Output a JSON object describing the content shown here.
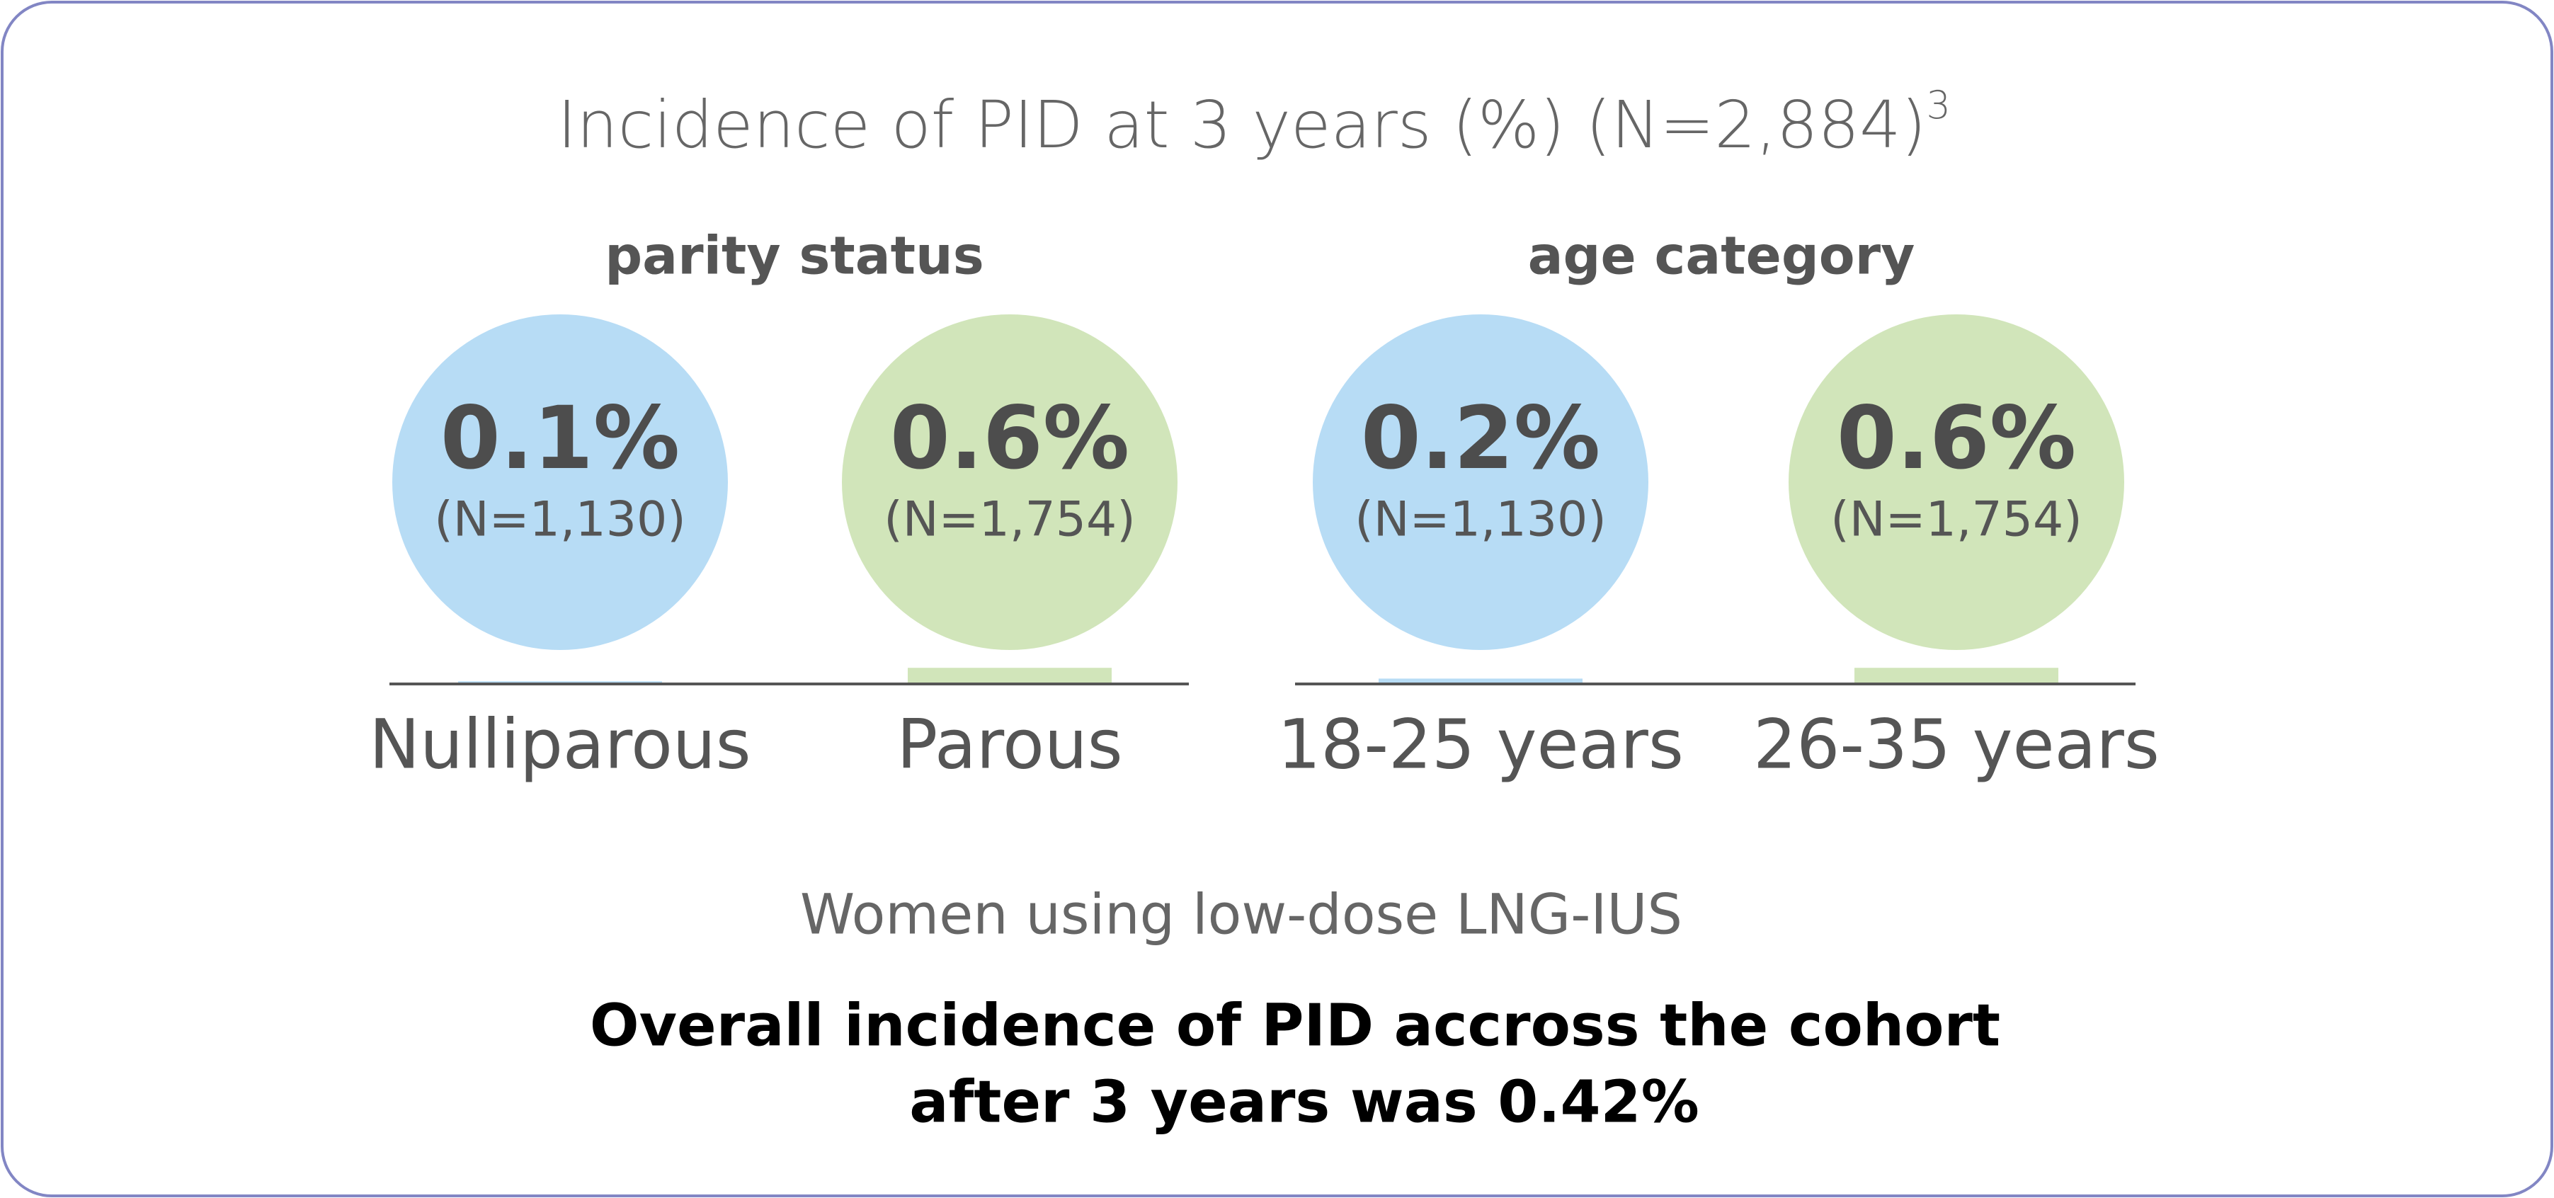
{
  "title": "Incidence of PID at 3 years (%) (N=2,884)",
  "title_note": "3",
  "chart_data": [
    {
      "type": "bar",
      "title": "parity status",
      "categories": [
        "Nulliparous",
        "Parous"
      ],
      "values": [
        0.1,
        0.6
      ],
      "value_labels": [
        "0.1%",
        "0.6%"
      ],
      "n_labels": [
        "(N=1,130)",
        "(N=1,754)"
      ],
      "colors": [
        "#b7dcf5",
        "#d1e5ba"
      ]
    },
    {
      "type": "bar",
      "title": "age category",
      "categories": [
        "18-25 years",
        "26-35 years"
      ],
      "values": [
        0.2,
        0.6
      ],
      "value_labels": [
        "0.2%",
        "0.6%"
      ],
      "n_labels": [
        "(N=1,130)",
        "(N=1,754)"
      ],
      "colors": [
        "#b7dcf5",
        "#d1e5ba"
      ]
    }
  ],
  "subtitle": "Women using low-dose LNG-IUS",
  "conclusion": [
    "Overall incidence of PID accross the cohort",
    "after 3 years was 0.42%"
  ]
}
